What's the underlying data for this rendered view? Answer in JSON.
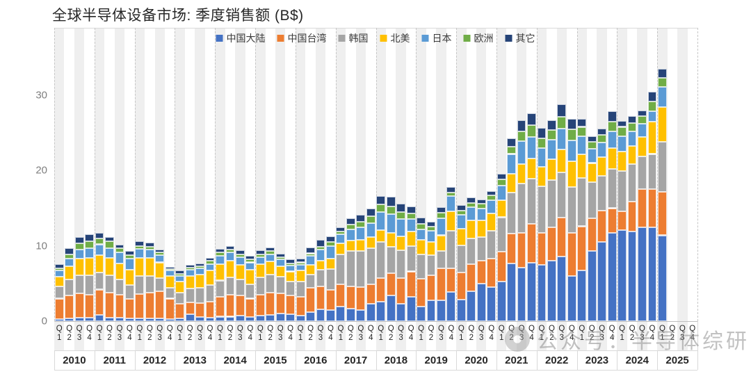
{
  "watermark": {
    "text": "公众号：半导体综研"
  },
  "chart_data": {
    "type": "bar",
    "stacked": true,
    "title": "全球半导体设备市场: 季度销售额 (B$)",
    "ylabel": "",
    "xlabel": "",
    "unit": "B$",
    "ylim": [
      0,
      35
    ],
    "y_ticks": [
      0,
      10,
      20,
      30
    ],
    "grid": "vertical-dashed-year-boundaries",
    "legend_position": "top-center",
    "years": [
      "2010",
      "2011",
      "2012",
      "2013",
      "2014",
      "2015",
      "2016",
      "2017",
      "2018",
      "2019",
      "2020",
      "2021",
      "2022",
      "2023",
      "2024",
      "2025"
    ],
    "quarter_labels": [
      "1",
      "2",
      "3",
      "4"
    ],
    "quarter_prefix": "Q",
    "categories": [
      "2010Q1",
      "2010Q2",
      "2010Q3",
      "2010Q4",
      "2011Q1",
      "2011Q2",
      "2011Q3",
      "2011Q4",
      "2012Q1",
      "2012Q2",
      "2012Q3",
      "2012Q4",
      "2013Q1",
      "2013Q2",
      "2013Q3",
      "2013Q4",
      "2014Q1",
      "2014Q2",
      "2014Q3",
      "2014Q4",
      "2015Q1",
      "2015Q2",
      "2015Q3",
      "2015Q4",
      "2016Q1",
      "2016Q2",
      "2016Q3",
      "2016Q4",
      "2017Q1",
      "2017Q2",
      "2017Q3",
      "2017Q4",
      "2018Q1",
      "2018Q2",
      "2018Q3",
      "2018Q4",
      "2019Q1",
      "2019Q2",
      "2019Q3",
      "2019Q4",
      "2020Q1",
      "2020Q2",
      "2020Q3",
      "2020Q4",
      "2021Q1",
      "2021Q2",
      "2021Q3",
      "2021Q4",
      "2022Q1",
      "2022Q2",
      "2022Q3",
      "2022Q4",
      "2023Q1",
      "2023Q2",
      "2023Q3",
      "2023Q4",
      "2024Q1",
      "2024Q2",
      "2024Q3",
      "2024Q4",
      "2025Q1"
    ],
    "series": [
      {
        "name": "中国大陆",
        "color": "#4472C4",
        "values": [
          0.3,
          0.4,
          0.5,
          0.5,
          0.8,
          0.5,
          0.5,
          0.4,
          0.4,
          0.4,
          0.4,
          0.3,
          0.4,
          0.9,
          0.6,
          0.5,
          0.6,
          0.6,
          0.7,
          0.6,
          0.7,
          0.8,
          1.0,
          0.9,
          0.7,
          1.2,
          1.6,
          1.5,
          1.9,
          1.7,
          1.5,
          2.3,
          2.6,
          3.4,
          2.3,
          3.2,
          1.9,
          2.8,
          2.8,
          3.9,
          2.9,
          4.0,
          5.0,
          4.5,
          5.3,
          7.7,
          7.1,
          7.8,
          7.5,
          8.0,
          8.6,
          6.0,
          6.7,
          9.3,
          10.5,
          11.7,
          12.1,
          11.9,
          12.5,
          12.5,
          11.4
        ]
      },
      {
        "name": "中国台湾",
        "color": "#ED7D31",
        "values": [
          2.7,
          3.0,
          3.2,
          3.0,
          3.4,
          3.3,
          3.0,
          2.6,
          3.2,
          3.4,
          3.6,
          2.7,
          1.9,
          1.6,
          1.8,
          2.1,
          2.6,
          2.9,
          2.7,
          2.4,
          2.8,
          3.0,
          2.7,
          2.5,
          2.5,
          3.2,
          3.0,
          2.7,
          3.0,
          2.9,
          3.0,
          2.6,
          3.1,
          3.0,
          3.4,
          3.4,
          3.7,
          3.3,
          4.2,
          3.1,
          3.6,
          3.6,
          3.0,
          3.8,
          3.9,
          3.9,
          4.6,
          5.1,
          4.2,
          4.5,
          5.2,
          5.7,
          5.9,
          4.4,
          4.2,
          3.3,
          2.5,
          4.0,
          5.0,
          5.0,
          5.8
        ]
      },
      {
        "name": "韩国",
        "color": "#A5A5A5",
        "values": [
          1.6,
          2.1,
          2.4,
          2.6,
          2.3,
          2.3,
          2.0,
          1.8,
          2.4,
          2.2,
          1.7,
          1.4,
          1.5,
          1.8,
          2.0,
          2.2,
          2.2,
          2.3,
          2.1,
          1.9,
          2.3,
          2.4,
          2.2,
          1.9,
          2.1,
          1.8,
          2.2,
          2.7,
          4.0,
          4.7,
          4.8,
          4.8,
          4.8,
          3.5,
          3.7,
          3.4,
          3.3,
          2.7,
          2.3,
          5.0,
          3.6,
          3.4,
          3.2,
          3.7,
          4.6,
          5.5,
          6.6,
          6.0,
          6.2,
          6.2,
          6.0,
          6.1,
          6.4,
          4.8,
          4.6,
          5.2,
          5.3,
          5.0,
          4.4,
          4.7,
          6.6
        ]
      },
      {
        "name": "北美",
        "color": "#FFC000",
        "values": [
          1.3,
          1.8,
          2.2,
          2.3,
          2.3,
          2.3,
          2.2,
          2.0,
          2.4,
          2.4,
          2.1,
          1.6,
          1.5,
          1.7,
          1.8,
          1.9,
          2.2,
          2.2,
          2.0,
          1.9,
          1.8,
          1.7,
          1.4,
          1.3,
          1.4,
          1.3,
          1.2,
          1.4,
          1.4,
          1.4,
          1.5,
          1.5,
          1.6,
          1.8,
          1.9,
          1.9,
          1.9,
          1.7,
          2.1,
          2.6,
          2.2,
          2.4,
          2.2,
          2.3,
          2.3,
          2.5,
          2.6,
          2.7,
          2.6,
          2.8,
          3.0,
          3.4,
          3.2,
          2.5,
          2.5,
          2.8,
          2.6,
          2.4,
          2.6,
          4.3,
          4.6
        ]
      },
      {
        "name": "日本",
        "color": "#5B9BD5",
        "values": [
          0.8,
          1.0,
          1.2,
          1.3,
          1.4,
          1.3,
          1.4,
          1.5,
          1.2,
          1.1,
          1.0,
          0.7,
          0.7,
          0.8,
          0.8,
          0.9,
          1.1,
          1.1,
          1.0,
          1.0,
          0.9,
          1.0,
          0.9,
          0.8,
          0.8,
          1.2,
          1.5,
          1.7,
          1.2,
          1.5,
          1.7,
          1.8,
          2.4,
          2.5,
          2.3,
          1.7,
          1.4,
          1.5,
          2.3,
          2.0,
          1.8,
          1.7,
          1.6,
          1.8,
          1.9,
          2.6,
          3.0,
          2.9,
          2.5,
          2.6,
          2.8,
          2.8,
          2.4,
          1.9,
          1.9,
          2.2,
          2.1,
          1.9,
          1.7,
          1.4,
          2.7
        ]
      },
      {
        "name": "欧洲",
        "color": "#70AD47",
        "values": [
          0.3,
          0.6,
          0.8,
          0.9,
          0.8,
          0.9,
          0.6,
          0.5,
          0.4,
          0.4,
          0.3,
          0.2,
          0.3,
          0.3,
          0.3,
          0.4,
          0.4,
          0.4,
          0.4,
          0.4,
          0.4,
          0.4,
          0.3,
          0.3,
          0.3,
          0.3,
          0.4,
          0.5,
          0.4,
          0.6,
          0.7,
          0.9,
          1.0,
          1.0,
          0.9,
          0.7,
          0.7,
          0.6,
          0.7,
          0.5,
          0.6,
          0.6,
          0.6,
          0.6,
          0.8,
          1.0,
          1.3,
          1.5,
          1.3,
          1.3,
          1.5,
          1.5,
          1.2,
          0.9,
          1.0,
          1.3,
          1.2,
          1.1,
          1.0,
          1.3,
          1.2
        ]
      },
      {
        "name": "其它",
        "color": "#264478",
        "values": [
          0.6,
          0.8,
          0.9,
          0.9,
          0.7,
          0.6,
          0.5,
          0.5,
          0.6,
          0.5,
          0.4,
          0.3,
          0.4,
          0.4,
          0.4,
          0.4,
          0.5,
          0.5,
          0.5,
          0.5,
          0.5,
          0.5,
          0.5,
          0.5,
          0.5,
          0.8,
          0.9,
          0.8,
          0.6,
          0.9,
          0.9,
          1.1,
          1.1,
          1.3,
          1.1,
          0.9,
          0.9,
          0.6,
          0.7,
          0.7,
          0.7,
          0.7,
          0.6,
          0.6,
          0.8,
          1.1,
          1.5,
          1.6,
          1.4,
          1.3,
          1.7,
          1.4,
          1.1,
          0.8,
          0.9,
          1.4,
          0.8,
          0.9,
          0.8,
          1.3,
          1.2
        ]
      }
    ]
  }
}
